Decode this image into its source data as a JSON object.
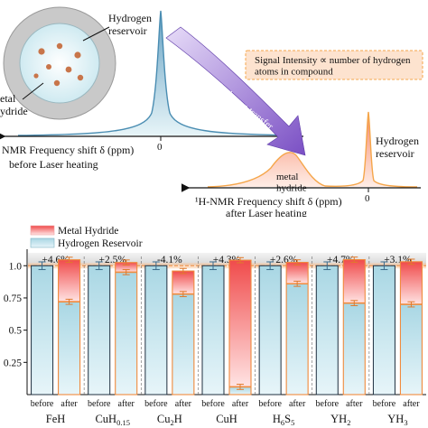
{
  "top": {
    "reservoir_label": "Hydrogen\nreservoir",
    "left_fragment_label": "etal\nydride",
    "axis1_label": "NMR Frequency shift δ (ppm)",
    "axis1_caption": "before Laser heating",
    "axis1_tick": "0",
    "arrow_text": "Laser induced hydrogen transfer",
    "formula_box": "Signal Intensity ∝ number of hydrogen\natoms in compound",
    "metal_hydride_label": "metal\nhydride",
    "axis2_label": "¹H-NMR Frequency shift δ (ppm)",
    "axis2_caption": "after Laser heating",
    "axis2_tick": "0",
    "hydrogen_reservoir_right": "Hydrogen\nreservoir",
    "colors": {
      "peak_blue": "#5b9bbf",
      "peak_orange": "#f5a64a",
      "arrow_purple": "#7a4fc4",
      "box_fill": "#fde3cf",
      "box_border": "#f5a64a",
      "circle_outer": "#c9c9c9",
      "circle_inner": "#d9f0f4",
      "particle": "#c8754a"
    }
  },
  "chart_data": {
    "type": "bar",
    "legend": [
      "Metal Hydride",
      "Hydrogen Reservoir"
    ],
    "legend_position": "top-left",
    "ylim": [
      0,
      1.1
    ],
    "yticks": [
      "0.25",
      "0.5",
      "0.75",
      "1.0"
    ],
    "groups": [
      {
        "compound": "FeH",
        "change": "+4.6%",
        "before": 1.0,
        "after_reservoir": 0.72,
        "after_total": 1.046
      },
      {
        "compound": "CuH0.15",
        "change": "+2.5%",
        "before": 1.0,
        "after_reservoir": 0.95,
        "after_total": 1.025
      },
      {
        "compound": "Cu2H",
        "change": "-4.1%",
        "before": 1.0,
        "after_reservoir": 0.78,
        "after_total": 0.959
      },
      {
        "compound": "CuH",
        "change": "+4.3%",
        "before": 1.0,
        "after_reservoir": 0.06,
        "after_total": 1.043
      },
      {
        "compound": "H6S5",
        "change": "+2.6%",
        "before": 1.0,
        "after_reservoir": 0.86,
        "after_total": 1.026
      },
      {
        "compound": "YH2",
        "change": "+4.7%",
        "before": 1.0,
        "after_reservoir": 0.71,
        "after_total": 1.047
      },
      {
        "compound": "YH3",
        "change": "+3.1%",
        "before": 1.0,
        "after_reservoir": 0.7,
        "after_total": 1.031
      }
    ],
    "compound_labels": [
      {
        "base": "FeH",
        "sub": ""
      },
      {
        "base": "CuH",
        "sub": "0.15"
      },
      {
        "base": "Cu",
        "sub": "2",
        "tail": "H"
      },
      {
        "base": "CuH",
        "sub": ""
      },
      {
        "base": "H",
        "sub": "6",
        "tail": "S",
        "sub2": "5"
      },
      {
        "base": "YH",
        "sub": "2"
      },
      {
        "base": "YH",
        "sub": "3"
      }
    ],
    "bar_labels": [
      "before",
      "after"
    ],
    "grid": false
  }
}
